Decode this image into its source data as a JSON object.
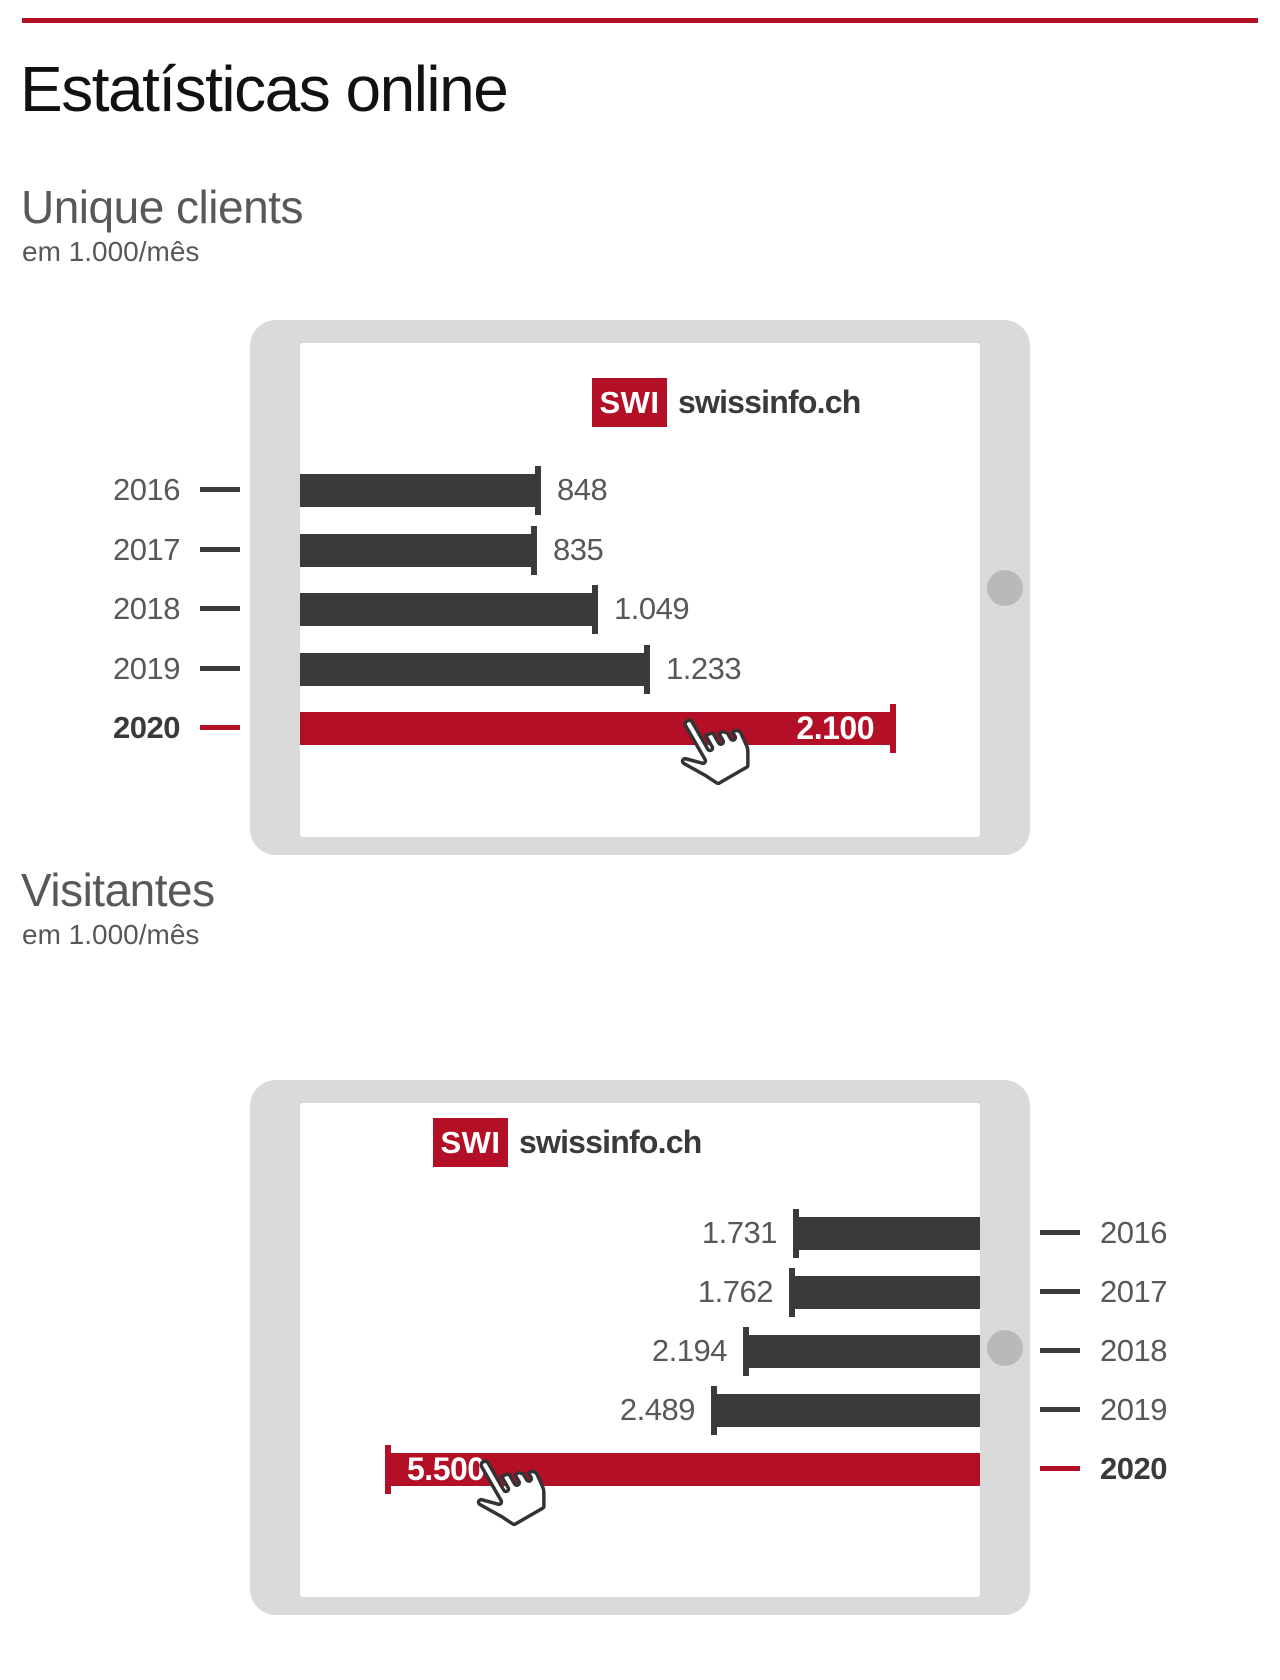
{
  "page": {
    "title": "Estatísticas online",
    "colors": {
      "accent_red": "#b30f26",
      "bar_dark": "#3a3a3a",
      "text_gray": "#58585a",
      "bezel_gray": "#dadada",
      "camera_gray": "#b9b9b9"
    }
  },
  "logo": {
    "badge": "SWI",
    "name": "swissinfo.ch"
  },
  "chart_data": [
    {
      "type": "bar",
      "orientation": "horizontal",
      "title": "Unique clients",
      "subtitle": "em 1.000/mês",
      "categories": [
        "2016",
        "2017",
        "2018",
        "2019",
        "2020"
      ],
      "values": [
        848,
        835,
        1049,
        1233,
        2100
      ],
      "value_labels": [
        "848",
        "835",
        "1.049",
        "1.233",
        "2.100"
      ],
      "highlight_category": "2020",
      "bars_anchored": "left",
      "category_axis_side": "left",
      "grid": false,
      "legend": false,
      "xlim": [
        0,
        2390
      ]
    },
    {
      "type": "bar",
      "orientation": "horizontal",
      "title": "Visitantes",
      "subtitle": "em 1.000/mês",
      "categories": [
        "2016",
        "2017",
        "2018",
        "2019",
        "2020"
      ],
      "values": [
        1731,
        1762,
        2194,
        2489,
        5500
      ],
      "value_labels": [
        "1.731",
        "1.762",
        "2.194",
        "2.489",
        "5.500"
      ],
      "highlight_category": "2020",
      "bars_anchored": "right",
      "category_axis_side": "right",
      "grid": false,
      "legend": false,
      "xlim": [
        0,
        6290
      ]
    }
  ]
}
